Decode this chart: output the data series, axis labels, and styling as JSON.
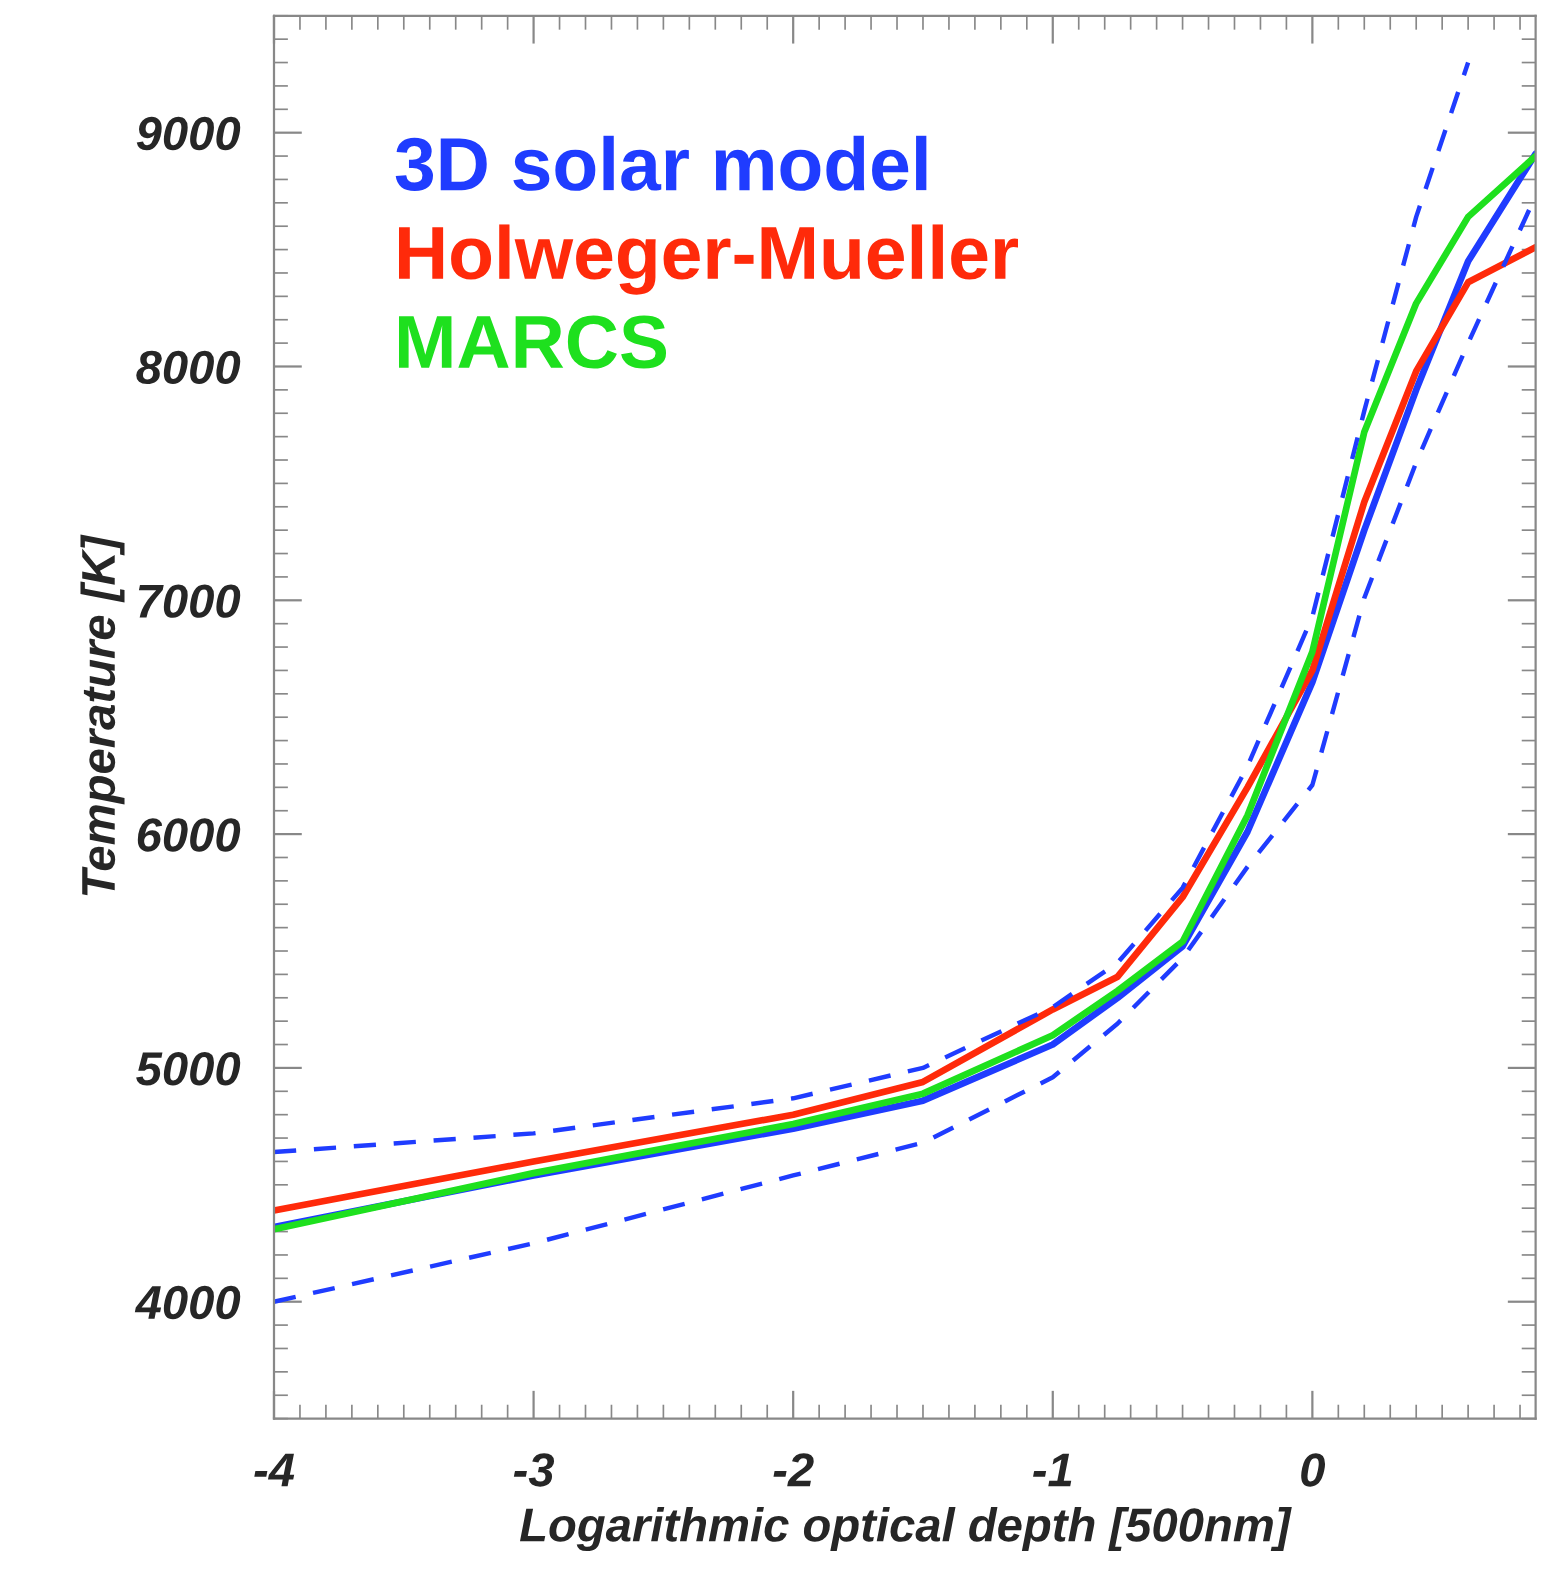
{
  "chart_data": {
    "type": "line",
    "xlabel": "Logarithmic optical depth [500nm]",
    "ylabel": "Temperature [K]",
    "x": [
      -4,
      -3,
      -2,
      -1.5,
      -1,
      -0.75,
      -0.5,
      -0.25,
      0,
      0.2,
      0.4,
      0.6,
      0.86
    ],
    "series": [
      {
        "name": "3D solar model",
        "color": "#1f3cff",
        "line_style": "solid",
        "values": [
          4320,
          4540,
          4740,
          4860,
          5100,
          5300,
          5520,
          6010,
          6650,
          7300,
          7900,
          8450,
          8910
        ]
      },
      {
        "name": "Holweger-Mueller",
        "color": "#ff2a0a",
        "line_style": "solid",
        "values": [
          4390,
          4600,
          4800,
          4940,
          5250,
          5390,
          5730,
          6200,
          6700,
          7420,
          7980,
          8360,
          8510
        ]
      },
      {
        "name": "MARCS",
        "color": "#1ee01e",
        "line_style": "solid",
        "values": [
          4310,
          4550,
          4760,
          4890,
          5140,
          5330,
          5540,
          6080,
          6780,
          7720,
          8270,
          8640,
          8900
        ]
      },
      {
        "color": "#1f3cff",
        "line_style": "dashed",
        "values": [
          4640,
          4720,
          4870,
          5000,
          5260,
          5450,
          5770,
          6290,
          6930,
          7810,
          8640,
          9300,
          null
        ]
      },
      {
        "color": "#1f3cff",
        "line_style": "dashed",
        "values": [
          4000,
          4250,
          4540,
          4680,
          4960,
          5190,
          5470,
          5860,
          6210,
          7010,
          7590,
          8100,
          8730
        ]
      }
    ],
    "xlim": [
      -4,
      0.86
    ],
    "ylim": [
      3500,
      9500
    ],
    "xticks": [
      -4,
      -3,
      -2,
      -1,
      0
    ],
    "yticks": [
      4000,
      5000,
      6000,
      7000,
      8000,
      9000
    ],
    "legend": "top left",
    "grid": false
  }
}
